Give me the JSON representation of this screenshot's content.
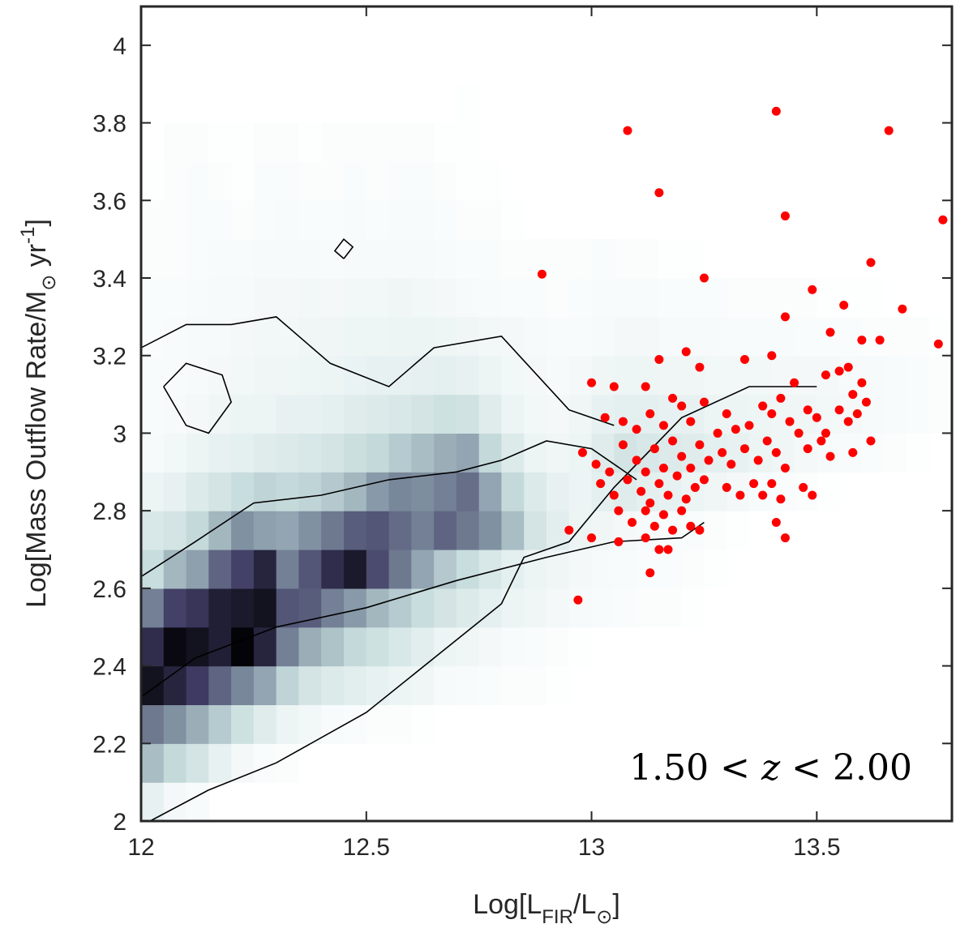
{
  "chart_data": {
    "type": "scatter",
    "xlabel": {
      "main": "Log[L",
      "sub": "FIR",
      "mid": "/L",
      "sun": "⊙",
      "end": "]"
    },
    "ylabel": {
      "main": "Log[Mass Outflow Rate/M",
      "sun": "⊙",
      "unit": " yr",
      "sup": "-1",
      "end": "]"
    },
    "annotation": {
      "left": "1.50 <",
      "var": "z",
      "right": "< 2.00"
    },
    "xlim": [
      12.0,
      13.8
    ],
    "ylim": [
      2.0,
      4.1
    ],
    "xticks": [
      12,
      12.5,
      13,
      13.5
    ],
    "xtick_labels": [
      "12",
      "12.5",
      "13",
      "13.5"
    ],
    "yticks": [
      2,
      2.2,
      2.4,
      2.6,
      2.8,
      3,
      3.2,
      3.4,
      3.6,
      3.8,
      4
    ],
    "ytick_labels": [
      "2",
      "2.2",
      "2.4",
      "2.6",
      "2.8",
      "3",
      "3.2",
      "3.4",
      "3.6",
      "3.8",
      "4"
    ],
    "colors": {
      "points": "#ff0000",
      "contour": "#000000",
      "axis": "#262626"
    },
    "density": {
      "x0": 12.0,
      "dx": 0.05,
      "y0": 2.0,
      "dy": 0.1,
      "rows": [
        [
          0.12,
          0.06,
          0.04,
          0,
          0,
          0,
          0,
          0,
          0,
          0,
          0,
          0,
          0,
          0,
          0,
          0,
          0,
          0,
          0,
          0,
          0,
          0,
          0,
          0,
          0,
          0,
          0,
          0,
          0,
          0,
          0,
          0,
          0,
          0,
          0,
          0
        ],
        [
          0.4,
          0.3,
          0.22,
          0.12,
          0.06,
          0.03,
          0.02,
          0,
          0,
          0,
          0,
          0,
          0,
          0,
          0,
          0,
          0,
          0,
          0,
          0,
          0,
          0,
          0,
          0,
          0,
          0,
          0,
          0,
          0,
          0,
          0,
          0,
          0,
          0,
          0,
          0
        ],
        [
          0.62,
          0.55,
          0.45,
          0.35,
          0.25,
          0.16,
          0.1,
          0.07,
          0.04,
          0.03,
          0.02,
          0.02,
          0.01,
          0,
          0,
          0,
          0,
          0,
          0,
          0,
          0,
          0,
          0,
          0,
          0,
          0,
          0,
          0,
          0,
          0,
          0,
          0,
          0,
          0,
          0,
          0
        ],
        [
          0.95,
          0.88,
          0.8,
          0.68,
          0.58,
          0.48,
          0.32,
          0.22,
          0.18,
          0.15,
          0.12,
          0.1,
          0.08,
          0.05,
          0.04,
          0.03,
          0.02,
          0.02,
          0.01,
          0,
          0,
          0,
          0,
          0,
          0,
          0,
          0,
          0,
          0,
          0,
          0,
          0,
          0,
          0,
          0,
          0
        ],
        [
          0.85,
          0.98,
          0.95,
          0.9,
          1.0,
          0.88,
          0.6,
          0.45,
          0.38,
          0.3,
          0.25,
          0.2,
          0.15,
          0.1,
          0.08,
          0.06,
          0.04,
          0.03,
          0.02,
          0.01,
          0,
          0,
          0,
          0,
          0,
          0,
          0,
          0,
          0,
          0,
          0,
          0,
          0,
          0,
          0,
          0
        ],
        [
          0.6,
          0.78,
          0.82,
          0.9,
          0.92,
          0.95,
          0.72,
          0.7,
          0.6,
          0.52,
          0.42,
          0.35,
          0.28,
          0.22,
          0.18,
          0.14,
          0.1,
          0.08,
          0.06,
          0.05,
          0.04,
          0.03,
          0.02,
          0.02,
          0.01,
          0,
          0,
          0,
          0,
          0,
          0,
          0,
          0,
          0,
          0,
          0
        ],
        [
          0.28,
          0.42,
          0.5,
          0.68,
          0.78,
          0.88,
          0.6,
          0.72,
          0.85,
          0.92,
          0.75,
          0.62,
          0.48,
          0.36,
          0.28,
          0.2,
          0.14,
          0.1,
          0.08,
          0.06,
          0.05,
          0.04,
          0.03,
          0.03,
          0.02,
          0.01,
          0,
          0,
          0,
          0,
          0,
          0,
          0,
          0,
          0,
          0
        ],
        [
          0.2,
          0.22,
          0.3,
          0.42,
          0.55,
          0.5,
          0.48,
          0.55,
          0.62,
          0.7,
          0.72,
          0.66,
          0.6,
          0.68,
          0.62,
          0.55,
          0.4,
          0.22,
          0.15,
          0.1,
          0.08,
          0.06,
          0.05,
          0.04,
          0.03,
          0.02,
          0.01,
          0,
          0,
          0,
          0,
          0,
          0,
          0,
          0,
          0
        ],
        [
          0.1,
          0.12,
          0.18,
          0.22,
          0.28,
          0.32,
          0.3,
          0.32,
          0.36,
          0.42,
          0.52,
          0.58,
          0.56,
          0.6,
          0.65,
          0.48,
          0.3,
          0.18,
          0.12,
          0.1,
          0.14,
          0.16,
          0.14,
          0.12,
          0.1,
          0.08,
          0.06,
          0.04,
          0.03,
          0.02,
          0.01,
          0,
          0,
          0,
          0,
          0
        ],
        [
          0.05,
          0.07,
          0.1,
          0.12,
          0.14,
          0.16,
          0.18,
          0.2,
          0.22,
          0.26,
          0.3,
          0.35,
          0.4,
          0.45,
          0.48,
          0.3,
          0.18,
          0.1,
          0.08,
          0.1,
          0.16,
          0.22,
          0.2,
          0.18,
          0.16,
          0.14,
          0.12,
          0.1,
          0.08,
          0.06,
          0.05,
          0.04,
          0.03,
          0.02,
          0.01,
          0
        ],
        [
          0.04,
          0.05,
          0.06,
          0.08,
          0.1,
          0.1,
          0.12,
          0.12,
          0.14,
          0.16,
          0.18,
          0.2,
          0.22,
          0.25,
          0.24,
          0.16,
          0.1,
          0.07,
          0.06,
          0.08,
          0.12,
          0.14,
          0.14,
          0.12,
          0.12,
          0.1,
          0.1,
          0.09,
          0.08,
          0.08,
          0.07,
          0.06,
          0.05,
          0.04,
          0.03,
          0.02
        ],
        [
          0.04,
          0.04,
          0.05,
          0.06,
          0.07,
          0.08,
          0.08,
          0.09,
          0.1,
          0.11,
          0.12,
          0.12,
          0.13,
          0.14,
          0.12,
          0.1,
          0.07,
          0.06,
          0.05,
          0.06,
          0.08,
          0.09,
          0.09,
          0.08,
          0.08,
          0.07,
          0.07,
          0.07,
          0.06,
          0.06,
          0.06,
          0.05,
          0.05,
          0.04,
          0.03,
          0.02
        ],
        [
          0.03,
          0.04,
          0.05,
          0.05,
          0.06,
          0.07,
          0.07,
          0.08,
          0.08,
          0.09,
          0.09,
          0.1,
          0.1,
          0.09,
          0.08,
          0.07,
          0.06,
          0.05,
          0.04,
          0.04,
          0.05,
          0.06,
          0.06,
          0.05,
          0.05,
          0.05,
          0.04,
          0.04,
          0.04,
          0.03,
          0.03,
          0.03,
          0.02,
          0.02,
          0.02,
          0.01
        ],
        [
          0.03,
          0.03,
          0.04,
          0.05,
          0.05,
          0.06,
          0.06,
          0.07,
          0.06,
          0.07,
          0.07,
          0.08,
          0.07,
          0.06,
          0.05,
          0.04,
          0.03,
          0.03,
          0.02,
          0.03,
          0.04,
          0.04,
          0.04,
          0.03,
          0.03,
          0.03,
          0.02,
          0.02,
          0.02,
          0.02,
          0.01,
          0.01,
          0.01,
          0,
          0,
          0
        ],
        [
          0.02,
          0.02,
          0.03,
          0.04,
          0.04,
          0.05,
          0.05,
          0.05,
          0.04,
          0.05,
          0.05,
          0.05,
          0.05,
          0.04,
          0.03,
          0.03,
          0.02,
          0.02,
          0.02,
          0.02,
          0.03,
          0.02,
          0.02,
          0.01,
          0.01,
          0,
          0,
          0,
          0,
          0,
          0,
          0,
          0,
          0,
          0,
          0
        ],
        [
          0.02,
          0.02,
          0.03,
          0.03,
          0.02,
          0.03,
          0.04,
          0.03,
          0.03,
          0.04,
          0.03,
          0.04,
          0.04,
          0.03,
          0.02,
          0.02,
          0.01,
          0,
          0,
          0,
          0,
          0,
          0,
          0,
          0,
          0,
          0,
          0,
          0,
          0,
          0,
          0,
          0,
          0,
          0,
          0
        ],
        [
          0.01,
          0.02,
          0.03,
          0.02,
          0.01,
          0.03,
          0.03,
          0.02,
          0.02,
          0.03,
          0.02,
          0.03,
          0.03,
          0.02,
          0.01,
          0.01,
          0,
          0,
          0,
          0,
          0,
          0,
          0,
          0,
          0,
          0,
          0,
          0,
          0,
          0,
          0,
          0,
          0,
          0,
          0,
          0
        ],
        [
          0,
          0.02,
          0.02,
          0.01,
          0.01,
          0.02,
          0.02,
          0.01,
          0.02,
          0.02,
          0.02,
          0.02,
          0.02,
          0.01,
          0.01,
          0,
          0,
          0,
          0,
          0,
          0,
          0,
          0,
          0,
          0,
          0,
          0,
          0,
          0,
          0,
          0,
          0,
          0,
          0,
          0,
          0
        ],
        [
          0,
          0,
          0,
          0,
          0,
          0,
          0,
          0,
          0,
          0,
          0,
          0,
          0,
          0,
          0.01,
          0,
          0,
          0,
          0,
          0,
          0,
          0,
          0,
          0,
          0,
          0,
          0,
          0,
          0,
          0,
          0,
          0,
          0,
          0,
          0,
          0
        ]
      ]
    },
    "contours": [
      [
        [
          12.02,
          2.0
        ],
        [
          12.15,
          2.08
        ],
        [
          12.3,
          2.15
        ],
        [
          12.5,
          2.28
        ],
        [
          12.65,
          2.42
        ],
        [
          12.8,
          2.56
        ],
        [
          12.85,
          2.68
        ],
        [
          12.95,
          2.72
        ],
        [
          13.05,
          2.86
        ],
        [
          13.2,
          3.04
        ],
        [
          13.35,
          3.12
        ],
        [
          13.5,
          3.12
        ]
      ],
      [
        [
          12.0,
          2.63
        ],
        [
          12.12,
          2.72
        ],
        [
          12.25,
          2.82
        ],
        [
          12.4,
          2.84
        ],
        [
          12.55,
          2.88
        ],
        [
          12.7,
          2.9
        ],
        [
          12.8,
          2.93
        ],
        [
          12.9,
          2.98
        ],
        [
          13.0,
          2.96
        ],
        [
          13.1,
          2.88
        ]
      ],
      [
        [
          12.0,
          2.32
        ],
        [
          12.12,
          2.42
        ],
        [
          12.3,
          2.5
        ],
        [
          12.5,
          2.55
        ],
        [
          12.7,
          2.62
        ],
        [
          12.9,
          2.68
        ],
        [
          13.05,
          2.72
        ],
        [
          13.2,
          2.73
        ],
        [
          13.25,
          2.77
        ]
      ],
      [
        [
          12.0,
          3.22
        ],
        [
          12.1,
          3.28
        ],
        [
          12.2,
          3.28
        ],
        [
          12.3,
          3.3
        ],
        [
          12.42,
          3.18
        ],
        [
          12.55,
          3.12
        ],
        [
          12.65,
          3.22
        ],
        [
          12.8,
          3.25
        ],
        [
          12.95,
          3.06
        ],
        [
          13.05,
          3.02
        ]
      ],
      [
        [
          12.05,
          3.12
        ],
        [
          12.1,
          3.02
        ],
        [
          12.15,
          3.0
        ],
        [
          12.2,
          3.08
        ],
        [
          12.18,
          3.15
        ],
        [
          12.1,
          3.18
        ],
        [
          12.05,
          3.12
        ]
      ],
      [
        [
          12.45,
          3.45
        ],
        [
          12.47,
          3.48
        ],
        [
          12.45,
          3.5
        ],
        [
          12.43,
          3.47
        ],
        [
          12.45,
          3.45
        ]
      ]
    ],
    "points": [
      [
        12.89,
        3.41
      ],
      [
        13.08,
        3.78
      ],
      [
        13.15,
        3.62
      ],
      [
        13.41,
        3.83
      ],
      [
        13.43,
        3.56
      ],
      [
        13.66,
        3.78
      ],
      [
        13.78,
        3.55
      ],
      [
        13.25,
        3.4
      ],
      [
        13.62,
        3.44
      ],
      [
        13.69,
        3.32
      ],
      [
        13.77,
        3.23
      ],
      [
        13.56,
        3.33
      ],
      [
        13.49,
        3.37
      ],
      [
        13.43,
        3.3
      ],
      [
        13.53,
        3.26
      ],
      [
        13.6,
        3.24
      ],
      [
        13.64,
        3.24
      ],
      [
        13.0,
        3.13
      ],
      [
        13.05,
        3.12
      ],
      [
        13.12,
        3.12
      ],
      [
        13.15,
        3.19
      ],
      [
        13.21,
        3.21
      ],
      [
        13.24,
        3.17
      ],
      [
        13.34,
        3.19
      ],
      [
        13.4,
        3.2
      ],
      [
        13.45,
        3.13
      ],
      [
        13.52,
        3.15
      ],
      [
        13.55,
        3.16
      ],
      [
        13.57,
        3.17
      ],
      [
        13.6,
        3.13
      ],
      [
        13.58,
        3.1
      ],
      [
        13.61,
        3.08
      ],
      [
        13.03,
        3.04
      ],
      [
        13.07,
        3.03
      ],
      [
        13.1,
        3.01
      ],
      [
        13.13,
        3.05
      ],
      [
        13.16,
        3.02
      ],
      [
        13.18,
        3.09
      ],
      [
        13.2,
        3.07
      ],
      [
        13.22,
        3.03
      ],
      [
        13.25,
        3.08
      ],
      [
        13.28,
        3.0
      ],
      [
        13.3,
        3.05
      ],
      [
        13.32,
        3.01
      ],
      [
        13.35,
        3.02
      ],
      [
        13.38,
        3.07
      ],
      [
        13.4,
        3.05
      ],
      [
        13.42,
        3.09
      ],
      [
        13.44,
        3.03
      ],
      [
        13.46,
        3.0
      ],
      [
        13.48,
        3.06
      ],
      [
        13.5,
        3.04
      ],
      [
        13.52,
        3.0
      ],
      [
        13.55,
        3.06
      ],
      [
        13.57,
        3.03
      ],
      [
        13.59,
        3.05
      ],
      [
        13.62,
        2.98
      ],
      [
        12.98,
        2.95
      ],
      [
        13.01,
        2.92
      ],
      [
        13.04,
        2.9
      ],
      [
        13.07,
        2.97
      ],
      [
        13.1,
        2.93
      ],
      [
        13.12,
        2.9
      ],
      [
        13.14,
        2.96
      ],
      [
        13.16,
        2.91
      ],
      [
        13.18,
        2.98
      ],
      [
        13.2,
        2.94
      ],
      [
        13.22,
        2.91
      ],
      [
        13.24,
        2.97
      ],
      [
        13.26,
        2.93
      ],
      [
        13.29,
        2.95
      ],
      [
        13.31,
        2.92
      ],
      [
        13.34,
        2.96
      ],
      [
        13.37,
        2.93
      ],
      [
        13.39,
        2.98
      ],
      [
        13.41,
        2.95
      ],
      [
        13.43,
        2.91
      ],
      [
        13.48,
        2.96
      ],
      [
        13.51,
        2.98
      ],
      [
        13.53,
        2.94
      ],
      [
        13.58,
        2.95
      ],
      [
        13.02,
        2.87
      ],
      [
        13.05,
        2.84
      ],
      [
        13.08,
        2.88
      ],
      [
        13.11,
        2.85
      ],
      [
        13.13,
        2.82
      ],
      [
        13.15,
        2.87
      ],
      [
        13.17,
        2.84
      ],
      [
        13.19,
        2.89
      ],
      [
        13.21,
        2.83
      ],
      [
        13.23,
        2.86
      ],
      [
        13.25,
        2.88
      ],
      [
        13.3,
        2.86
      ],
      [
        13.33,
        2.84
      ],
      [
        13.36,
        2.87
      ],
      [
        13.38,
        2.84
      ],
      [
        13.4,
        2.87
      ],
      [
        13.42,
        2.83
      ],
      [
        13.47,
        2.86
      ],
      [
        13.49,
        2.84
      ],
      [
        13.06,
        2.8
      ],
      [
        13.09,
        2.77
      ],
      [
        13.12,
        2.8
      ],
      [
        13.14,
        2.76
      ],
      [
        13.16,
        2.79
      ],
      [
        13.18,
        2.75
      ],
      [
        13.2,
        2.8
      ],
      [
        13.22,
        2.76
      ],
      [
        13.24,
        2.75
      ],
      [
        13.41,
        2.77
      ],
      [
        12.95,
        2.75
      ],
      [
        13.0,
        2.73
      ],
      [
        13.12,
        2.73
      ],
      [
        13.15,
        2.7
      ],
      [
        13.17,
        2.7
      ],
      [
        13.13,
        2.64
      ],
      [
        13.43,
        2.73
      ],
      [
        12.97,
        2.57
      ],
      [
        13.06,
        2.72
      ]
    ]
  }
}
